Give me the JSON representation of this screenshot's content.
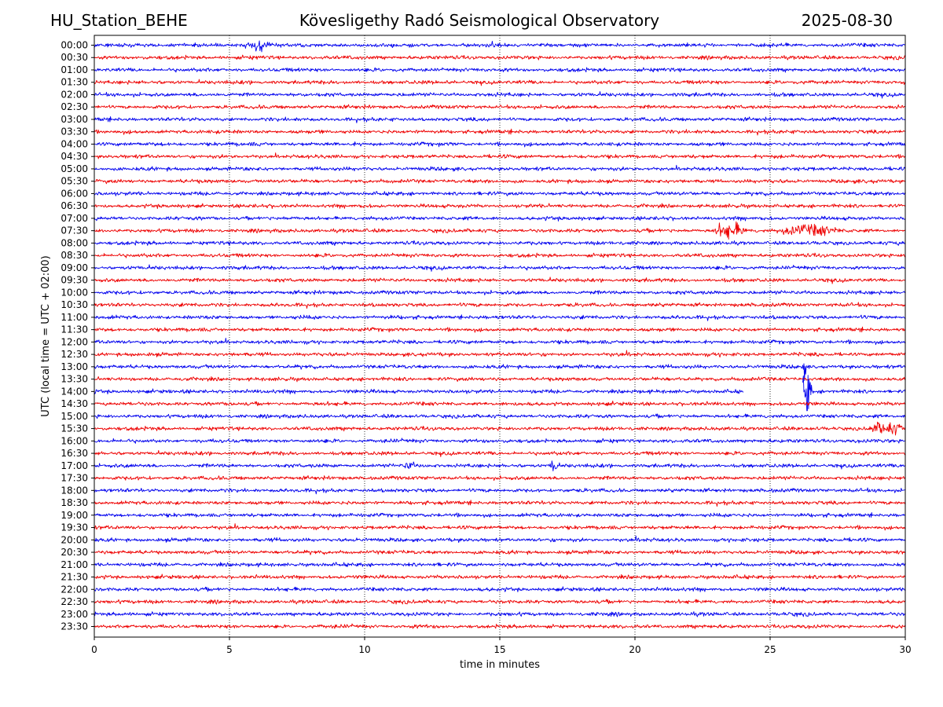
{
  "header": {
    "station": "HU_Station_BEHE",
    "title": "Kövesligethy Radó Seismological Observatory",
    "date": "2025-08-30"
  },
  "chart_data": {
    "type": "line",
    "subtype": "helicorder",
    "xlabel": "time in minutes",
    "ylabel": "UTC (local time = UTC + 02:00)",
    "xlim": [
      0,
      30
    ],
    "x_ticks": [
      0,
      5,
      10,
      15,
      20,
      25,
      30
    ],
    "vertical_grid": "dotted at x ticks",
    "colors": [
      "#0000ee",
      "#ee0000"
    ],
    "rows": [
      "00:00",
      "00:30",
      "01:00",
      "01:30",
      "02:00",
      "02:30",
      "03:00",
      "03:30",
      "04:00",
      "04:30",
      "05:00",
      "05:30",
      "06:00",
      "06:30",
      "07:00",
      "07:30",
      "08:00",
      "08:30",
      "09:00",
      "09:30",
      "10:00",
      "10:30",
      "11:00",
      "11:30",
      "12:00",
      "12:30",
      "13:00",
      "13:30",
      "14:00",
      "14:30",
      "15:00",
      "15:30",
      "16:00",
      "16:30",
      "17:00",
      "17:30",
      "18:00",
      "18:30",
      "19:00",
      "19:30",
      "20:00",
      "20:30",
      "21:00",
      "21:30",
      "22:00",
      "22:30",
      "23:00",
      "23:30"
    ],
    "events": [
      {
        "row": "00:00",
        "x": [
          5.6,
          6.5
        ],
        "amplitude": 5
      },
      {
        "row": "07:30",
        "x": [
          22.9,
          24.1
        ],
        "amplitude": 7
      },
      {
        "row": "07:30",
        "x": [
          25.2,
          27.6
        ],
        "amplitude": 5
      },
      {
        "row": "13:00",
        "x": [
          26.2,
          26.3
        ],
        "amplitude": 10
      },
      {
        "row": "14:00",
        "x": [
          26.2,
          26.5
        ],
        "amplitude": 28
      },
      {
        "row": "15:30",
        "x": [
          28.6,
          30
        ],
        "amplitude": 6
      },
      {
        "row": "17:00",
        "x": [
          11.5,
          11.8
        ],
        "amplitude": 4
      },
      {
        "row": "17:00",
        "x": [
          16.9,
          17.1
        ],
        "amplitude": 8
      }
    ],
    "gaps": [
      {
        "row": "14:00",
        "x": [
          24.0,
          26.2
        ]
      }
    ]
  }
}
